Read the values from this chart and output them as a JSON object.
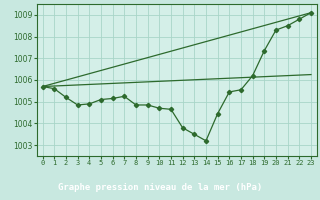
{
  "background_color": "#c8e8e0",
  "plot_bg_color": "#d4efe8",
  "grid_color": "#a8d5c8",
  "line_color": "#2d6a2d",
  "title_bg_color": "#2d6a2d",
  "title_text_color": "#ffffff",
  "title": "Graphe pression niveau de la mer (hPa)",
  "xlim": [
    -0.5,
    23.5
  ],
  "ylim": [
    1002.5,
    1009.5
  ],
  "yticks": [
    1003,
    1004,
    1005,
    1006,
    1007,
    1008,
    1009
  ],
  "xticks": [
    0,
    1,
    2,
    3,
    4,
    5,
    6,
    7,
    8,
    9,
    10,
    11,
    12,
    13,
    14,
    15,
    16,
    17,
    18,
    19,
    20,
    21,
    22,
    23
  ],
  "series1_x": [
    0,
    1,
    2,
    3,
    4,
    5,
    6,
    7,
    8,
    9,
    10,
    11,
    12,
    13,
    14,
    15,
    16,
    17,
    18,
    19,
    20,
    21,
    22,
    23
  ],
  "series1_y": [
    1005.7,
    1005.6,
    1005.2,
    1004.85,
    1004.9,
    1005.1,
    1005.15,
    1005.25,
    1004.85,
    1004.85,
    1004.7,
    1004.65,
    1003.8,
    1003.5,
    1003.2,
    1004.45,
    1005.45,
    1005.55,
    1006.2,
    1007.35,
    1008.3,
    1008.5,
    1008.8,
    1009.1
  ],
  "series2_x": [
    0,
    23
  ],
  "series2_y": [
    1005.7,
    1009.1
  ],
  "series3_x": [
    0,
    23
  ],
  "series3_y": [
    1005.7,
    1006.25
  ]
}
